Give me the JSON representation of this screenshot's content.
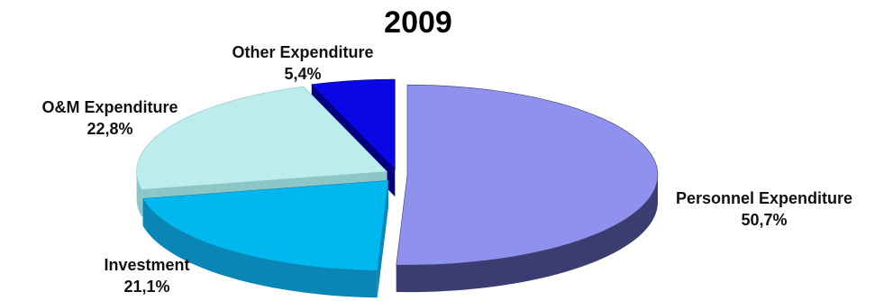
{
  "chart_data": {
    "type": "pie",
    "title": "2009",
    "slices": [
      {
        "label": "Personnel Expenditure",
        "value": 50.7,
        "value_text": "50,7%",
        "color": "#8f91ef",
        "side_color": "#3b3d70"
      },
      {
        "label": "Investment",
        "value": 21.1,
        "value_text": "21,1%",
        "color": "#00b8ee",
        "side_color": "#0a86b6"
      },
      {
        "label": "O&M Expenditure",
        "value": 22.8,
        "value_text": "22,8%",
        "color": "#bcecec",
        "side_color": "#8cc6c6"
      },
      {
        "label": "Other Expenditure",
        "value": 5.4,
        "value_text": "5,4%",
        "color": "#0a06e6",
        "side_color": "#040080"
      }
    ],
    "style": "3d-exploded"
  }
}
